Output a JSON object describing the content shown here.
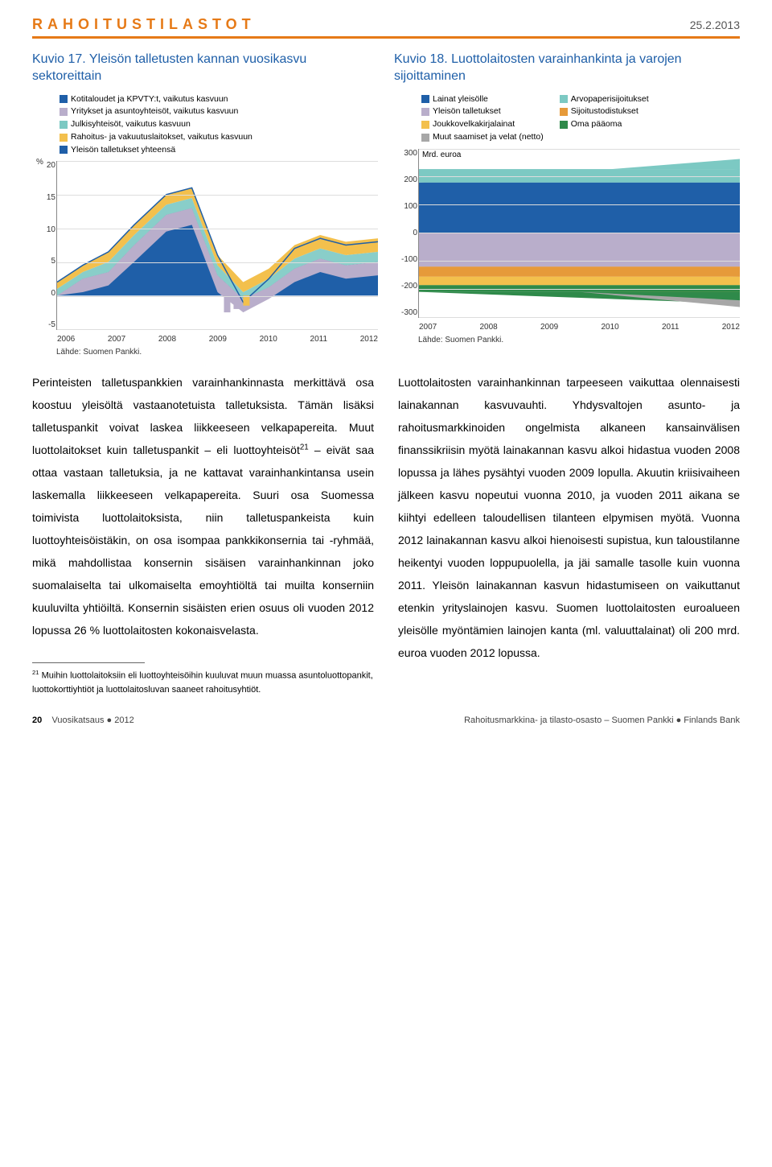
{
  "header": {
    "title_spaced": "RAHOITUSTILASTOT",
    "date": "25.2.2013"
  },
  "chart17": {
    "title": "Kuvio 17. Yleisön talletusten kannan vuosikasvu sektoreittain",
    "legend": [
      {
        "label": "Kotitaloudet ja KPVTY:t, vaikutus kasvuun",
        "color": "#1f5fa8"
      },
      {
        "label": "Yritykset ja asuntoyhteisöt, vaikutus kasvuun",
        "color": "#b9aecb"
      },
      {
        "label": "Julkisyhteisöt, vaikutus kasvuun",
        "color": "#7cc9c3"
      },
      {
        "label": "Rahoitus- ja vakuutuslaitokset, vaikutus kasvuun",
        "color": "#f3c04d"
      },
      {
        "label": "Yleisön talletukset yhteensä",
        "color": "#1f5fa8"
      }
    ],
    "y_unit": "%",
    "y_ticks": [
      "20",
      "15",
      "10",
      "5",
      "0",
      "-5"
    ],
    "x_ticks": [
      "2006",
      "2007",
      "2008",
      "2009",
      "2010",
      "2011",
      "2012"
    ],
    "ylim_min": -5,
    "ylim_max": 20,
    "source": "Lähde: Suomen Pankki."
  },
  "chart18": {
    "title": "Kuvio 18. Luottolaitosten varainhankinta ja varojen sijoittaminen",
    "legend_left": [
      {
        "label": "Lainat yleisölle",
        "color": "#1f5fa8"
      },
      {
        "label": "Yleisön talletukset",
        "color": "#b9aecb"
      },
      {
        "label": "Joukkovelkakirjalainat",
        "color": "#f3c04d"
      },
      {
        "label": "Muut saamiset ja velat (netto)",
        "color": "#a7a7a7"
      }
    ],
    "legend_right": [
      {
        "label": "Arvopaperisijoitukset",
        "color": "#7cc9c3"
      },
      {
        "label": "Sijoitustodistukset",
        "color": "#e69a3a"
      },
      {
        "label": "Oma pääoma",
        "color": "#2f8a4a"
      }
    ],
    "y_unit": "Mrd. euroa",
    "y_ticks": [
      "300",
      "200",
      "100",
      "0",
      "-100",
      "-200",
      "-300"
    ],
    "x_ticks": [
      "2007",
      "2008",
      "2009",
      "2010",
      "2011",
      "2012"
    ],
    "ylim_min": -300,
    "ylim_max": 300,
    "source": "Lähde: Suomen Pankki."
  },
  "body": {
    "left": "Perinteisten talletuspankkien varainhankinnasta merkittävä osa koostuu yleisöltä vastaanotetuista talletuksista. Tämän lisäksi talletuspankit voivat laskea liikkeeseen velkapapereita. Muut luottolaitokset kuin talletuspankit – eli luottoyhteisöt__SUP21__ – eivät saa ottaa vastaan talletuksia, ja ne kattavat varainhankintansa usein laskemalla liikkeeseen velkapapereita. Suuri osa Suomessa toimivista luottolaitoksista, niin talletuspankeista kuin luottoyhteisöistäkin, on osa isompaa pankkikonsernia tai -ryhmää, mikä mahdollistaa konsernin sisäisen varainhankinnan joko suomalaiselta tai ulkomaiselta emoyhtiöltä tai muilta konserniin kuuluvilta yhtiöiltä. Konsernin sisäisten erien osuus oli vuoden 2012 lopussa 26 % luottolaitosten kokonaisvelasta.",
    "right": "Luottolaitosten varainhankinnan tarpeeseen vaikuttaa olennaisesti lainakannan kasvuvauhti. Yhdysvaltojen asunto- ja rahoitusmarkkinoiden ongelmista alkaneen kansainvälisen finanssikriisin myötä lainakannan kasvu alkoi hidastua vuoden 2008 lopussa ja lähes pysähtyi vuoden 2009 lopulla. Akuutin kriisivaiheen jälkeen kasvu nopeutui vuonna 2010, ja vuoden 2011 aikana se kiihtyi edelleen taloudellisen tilanteen elpymisen myötä. Vuonna 2012 lainakannan kasvu alkoi hienoisesti supistua, kun taloustilanne heikentyi vuoden loppupuolella, ja jäi samalle tasolle kuin vuonna 2011. Yleisön lainakannan kasvun hidastumiseen on vaikuttanut etenkin yrityslainojen kasvu. Suomen luottolaitosten euroalueen yleisölle myöntämien lainojen kanta (ml. valuuttalainat) oli 200 mrd. euroa vuoden 2012 lopussa."
  },
  "footnote": {
    "marker": "21",
    "text": "Muihin luottolaitoksiin eli luottoyhteisöihin kuuluvat muun muassa asuntoluottopankit, luottokorttiyhtiöt ja luottolaitosluvan saaneet rahoitusyhtiöt."
  },
  "footer": {
    "page": "20",
    "left": "Vuosikatsaus ● 2012",
    "right": "Rahoitusmarkkina- ja tilasto-osasto – Suomen Pankki ● Finlands Bank"
  }
}
